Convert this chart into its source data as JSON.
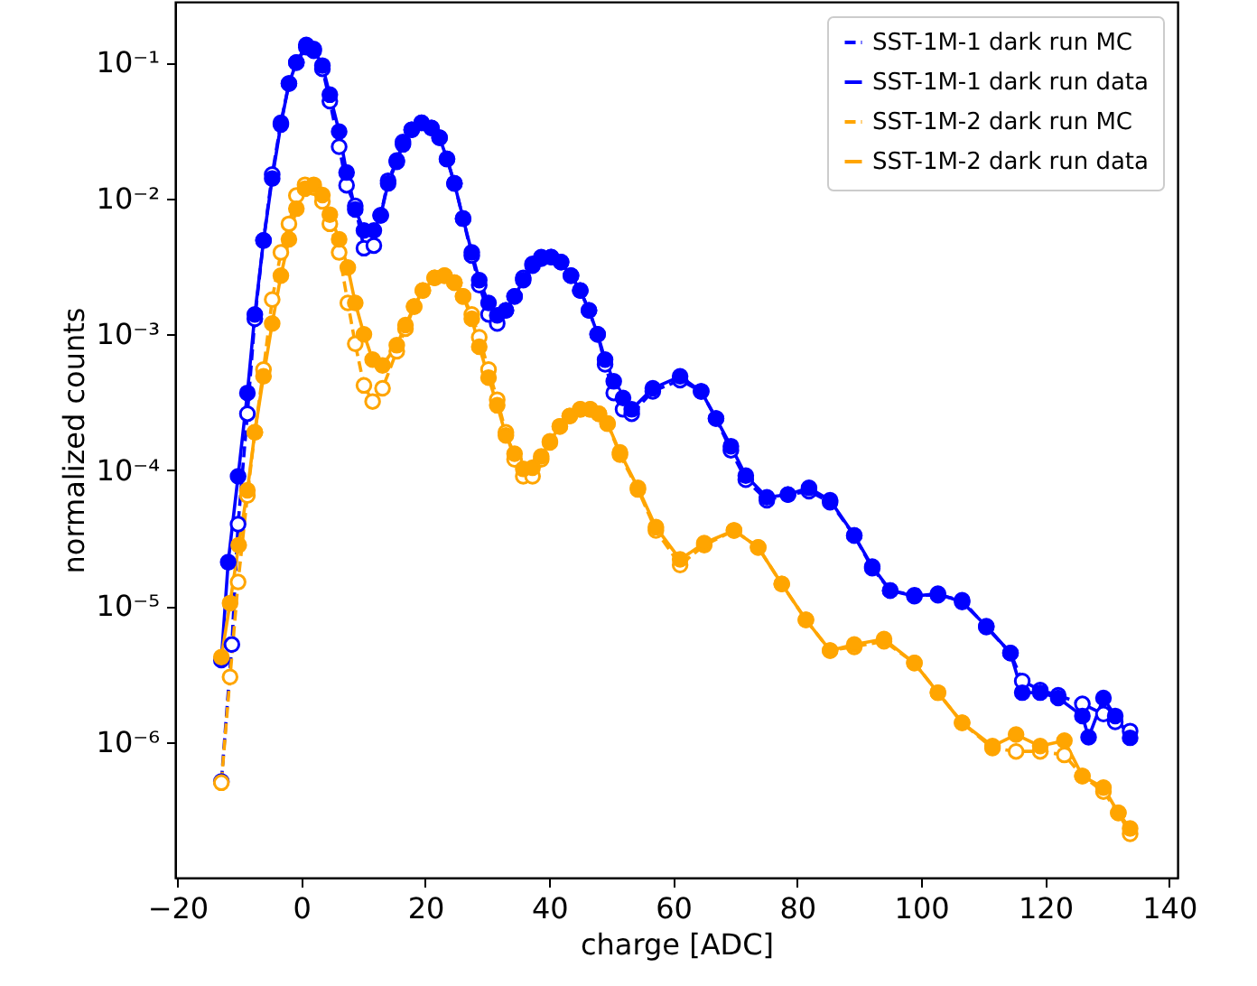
{
  "chart_data": {
    "type": "line",
    "xlabel": "charge [ADC]",
    "ylabel": "normalized counts",
    "log": "y",
    "grid": false,
    "legend": "top right",
    "marker": "circle",
    "xlim": [
      -20.35,
      141.35
    ],
    "xticks": [
      -20,
      0,
      20,
      40,
      60,
      80,
      100,
      120,
      140
    ],
    "ylim": [
      1e-07,
      0.28
    ],
    "yticks": [
      {
        "value": 1e-06,
        "label": "10⁻⁶"
      },
      {
        "value": 1e-05,
        "label": "10⁻⁵"
      },
      {
        "value": 0.0001,
        "label": "10⁻⁴"
      },
      {
        "value": 0.001,
        "label": "10⁻³"
      },
      {
        "value": 0.01,
        "label": "10⁻²"
      },
      {
        "value": 0.1,
        "label": "10⁻¹"
      }
    ],
    "series": [
      {
        "name": "SST-1M-1 dark run MC",
        "color": "#0000ff",
        "line_style": "dashed",
        "x": [
          -12.9,
          -11.2,
          -10.2,
          -8.7,
          -7.5,
          -6.1,
          -4.7,
          -3.3,
          -2.0,
          -0.8,
          0.8,
          2.0,
          3.4,
          4.6,
          6.1,
          7.3,
          8.7,
          10.1,
          11.7,
          12.8,
          14.0,
          15.4,
          16.4,
          17.8,
          19.4,
          21.0,
          22.3,
          23.5,
          24.7,
          26.1,
          27.5,
          28.7,
          30.2,
          31.6,
          33.0,
          34.4,
          35.8,
          37.3,
          38.7,
          40.3,
          41.9,
          43.5,
          45.0,
          46.4,
          47.8,
          49.0,
          50.4,
          51.9,
          53.3,
          56.7,
          61.1,
          64.5,
          66.9,
          69.3,
          71.7,
          75.1,
          78.5,
          81.9,
          85.3,
          89.2,
          92.1,
          95.0,
          98.9,
          102.7,
          106.6,
          110.5,
          114.4,
          116.3,
          119.2,
          122.1,
          126.0,
          129.4,
          131.3,
          133.7
        ],
        "values": [
          5.1e-07,
          5.2e-06,
          4e-05,
          0.00026,
          0.0013,
          0.0049,
          0.015,
          0.036,
          0.07,
          0.1,
          0.13,
          0.122,
          0.09,
          0.052,
          0.024,
          0.0125,
          0.0088,
          0.0043,
          0.0045,
          0.0075,
          0.0135,
          0.019,
          0.026,
          0.032,
          0.036,
          0.033,
          0.028,
          0.0195,
          0.0129,
          0.0071,
          0.0038,
          0.0023,
          0.0014,
          0.0012,
          0.0015,
          0.0019,
          0.0026,
          0.0033,
          0.0037,
          0.0037,
          0.0034,
          0.0027,
          0.0021,
          0.0015,
          0.001,
          0.0006,
          0.00037,
          0.00028,
          0.00026,
          0.00038,
          0.00046,
          0.00038,
          0.00024,
          0.00014,
          8.5e-05,
          6e-05,
          6.6e-05,
          7e-05,
          5.8e-05,
          3.3e-05,
          1.9e-05,
          1.3e-05,
          1.2e-05,
          1.2e-05,
          1.1e-05,
          7e-06,
          4.5e-06,
          2.8e-06,
          2.4e-06,
          2.2e-06,
          1.9e-06,
          1.6e-06,
          1.4e-06,
          1.2e-06
        ]
      },
      {
        "name": "SST-1M-1 dark run data",
        "color": "#0000ff",
        "line_style": "solid",
        "x": [
          -12.9,
          -11.8,
          -10.2,
          -8.7,
          -7.5,
          -6.1,
          -4.7,
          -3.3,
          -2.0,
          -0.8,
          0.8,
          2.0,
          3.4,
          4.6,
          6.1,
          7.3,
          8.7,
          10.1,
          11.7,
          12.8,
          14.0,
          15.4,
          16.4,
          17.8,
          19.4,
          21.0,
          22.3,
          23.5,
          24.7,
          26.1,
          27.5,
          28.7,
          30.2,
          31.6,
          33.0,
          34.4,
          35.8,
          37.3,
          38.7,
          40.3,
          41.9,
          43.5,
          45.0,
          46.4,
          47.8,
          49.0,
          50.4,
          51.9,
          53.3,
          56.7,
          61.1,
          64.5,
          66.9,
          69.3,
          71.7,
          75.1,
          78.5,
          81.9,
          85.3,
          89.2,
          92.1,
          95.0,
          98.9,
          102.7,
          106.6,
          110.5,
          114.4,
          116.3,
          119.2,
          122.1,
          126.0,
          127.0,
          129.4,
          131.3,
          133.7
        ],
        "values": [
          4e-06,
          2.1e-05,
          9e-05,
          0.00037,
          0.0014,
          0.0049,
          0.014,
          0.035,
          0.07,
          0.1,
          0.135,
          0.126,
          0.095,
          0.058,
          0.031,
          0.0155,
          0.0083,
          0.0058,
          0.0058,
          0.0075,
          0.0129,
          0.0186,
          0.025,
          0.032,
          0.036,
          0.033,
          0.028,
          0.0195,
          0.0129,
          0.0071,
          0.004,
          0.0025,
          0.0017,
          0.00138,
          0.0015,
          0.0019,
          0.0025,
          0.0032,
          0.0036,
          0.0037,
          0.0034,
          0.0027,
          0.0021,
          0.0015,
          0.001,
          0.00065,
          0.00045,
          0.00034,
          0.00028,
          0.0004,
          0.00049,
          0.00038,
          0.00024,
          0.00015,
          9.1e-05,
          6.3e-05,
          6.6e-05,
          7.4e-05,
          6e-05,
          3.3e-05,
          1.95e-05,
          1.3e-05,
          1.18e-05,
          1.23e-05,
          1.07e-05,
          7.1e-06,
          4.5e-06,
          2.3e-06,
          2.3e-06,
          2.1e-06,
          1.55e-06,
          1.08e-06,
          2.1e-06,
          1.55e-06,
          1.07e-06
        ]
      },
      {
        "name": "SST-1M-2 dark run MC",
        "color": "#ffa500",
        "line_style": "dashed",
        "x": [
          -12.9,
          -11.5,
          -10.2,
          -8.7,
          -7.5,
          -6.1,
          -4.7,
          -3.3,
          -2.0,
          -0.8,
          0.6,
          2.0,
          3.4,
          4.6,
          6.1,
          7.5,
          8.7,
          10.1,
          11.5,
          13.1,
          15.4,
          16.8,
          18.2,
          19.6,
          21.5,
          23.1,
          24.7,
          26.1,
          27.5,
          28.7,
          30.2,
          31.6,
          33.0,
          34.4,
          35.8,
          37.3,
          38.7,
          40.1,
          41.7,
          43.3,
          45.0,
          46.6,
          48.0,
          49.4,
          51.4,
          54.3,
          57.2,
          61.1,
          65.0,
          69.8,
          73.7,
          77.5,
          81.4,
          85.3,
          89.2,
          94.0,
          98.9,
          102.7,
          106.6,
          111.5,
          115.3,
          119.2,
          123.1,
          126.0,
          129.4,
          131.8,
          133.7
        ],
        "values": [
          5e-07,
          3e-06,
          1.5e-05,
          6.5e-05,
          0.00019,
          0.00055,
          0.0018,
          0.004,
          0.0065,
          0.0105,
          0.0126,
          0.012,
          0.0095,
          0.0065,
          0.004,
          0.0017,
          0.00085,
          0.00042,
          0.00032,
          0.0004,
          0.00075,
          0.0011,
          0.0016,
          0.0021,
          0.0026,
          0.0027,
          0.0024,
          0.0019,
          0.0014,
          0.00095,
          0.00055,
          0.00033,
          0.00019,
          0.00012,
          9e-05,
          9e-05,
          0.00012,
          0.00016,
          0.00021,
          0.00025,
          0.00028,
          0.00028,
          0.00026,
          0.00022,
          0.00013,
          7.2e-05,
          3.6e-05,
          2e-05,
          2.8e-05,
          3.6e-05,
          2.7e-05,
          1.45e-05,
          7.9e-06,
          4.7e-06,
          5e-06,
          5.5e-06,
          3.8e-06,
          2.3e-06,
          1.38e-06,
          9e-07,
          8.5e-07,
          8.5e-07,
          8e-07,
          5.6e-07,
          4.3e-07,
          3e-07,
          2.1e-07
        ]
      },
      {
        "name": "SST-1M-2 dark run data",
        "color": "#ffa500",
        "line_style": "solid",
        "x": [
          -12.9,
          -11.5,
          -10.1,
          -8.7,
          -7.5,
          -6.1,
          -4.7,
          -3.3,
          -2.0,
          -0.8,
          0.6,
          2.0,
          3.4,
          4.6,
          6.1,
          7.5,
          8.7,
          10.1,
          11.5,
          13.1,
          15.4,
          16.8,
          18.2,
          19.6,
          21.5,
          23.1,
          24.7,
          26.1,
          27.5,
          28.7,
          30.2,
          31.6,
          33.0,
          34.4,
          35.8,
          37.3,
          38.7,
          40.1,
          41.7,
          43.3,
          45.0,
          46.6,
          48.0,
          49.4,
          51.4,
          54.3,
          57.2,
          61.1,
          65.0,
          69.8,
          73.7,
          77.5,
          81.4,
          85.3,
          89.2,
          94.0,
          98.9,
          102.7,
          106.6,
          111.5,
          115.3,
          119.2,
          123.1,
          126.0,
          129.4,
          131.8,
          133.7
        ],
        "values": [
          4.2e-06,
          1.05e-05,
          2.8e-05,
          7.1e-05,
          0.00019,
          0.00049,
          0.0012,
          0.0027,
          0.005,
          0.0084,
          0.0118,
          0.0126,
          0.0106,
          0.0076,
          0.005,
          0.0031,
          0.0017,
          0.001,
          0.00065,
          0.00059,
          0.00083,
          0.00117,
          0.0016,
          0.0021,
          0.0026,
          0.0027,
          0.0024,
          0.0019,
          0.0013,
          0.00081,
          0.00048,
          0.0003,
          0.00018,
          0.000132,
          0.000102,
          0.000104,
          0.000126,
          0.000163,
          0.00021,
          0.00025,
          0.00028,
          0.00028,
          0.00026,
          0.00022,
          0.000135,
          7.4e-05,
          3.8e-05,
          2.2e-05,
          2.9e-05,
          3.6e-05,
          2.7e-05,
          1.45e-05,
          7.9e-06,
          4.7e-06,
          5.2e-06,
          5.7e-06,
          3.8e-06,
          2.3e-06,
          1.38e-06,
          9.3e-07,
          1.13e-06,
          9.3e-07,
          1.02e-06,
          5.6e-07,
          4.6e-07,
          3e-07,
          2.3e-07
        ]
      }
    ]
  }
}
